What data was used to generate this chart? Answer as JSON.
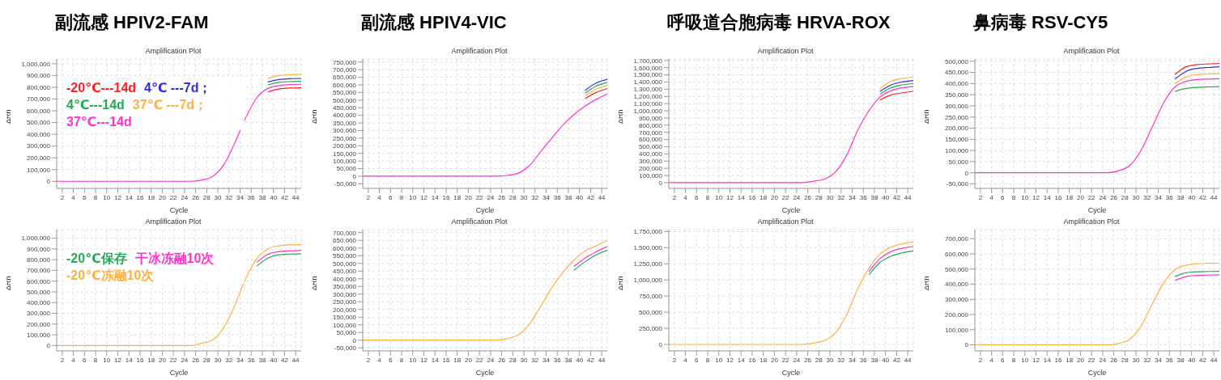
{
  "chart_data": [
    {
      "type": "line",
      "title": "副流感 HPIV2-FAM",
      "subtitle": "Amplification Plot",
      "xlabel": "Cycle",
      "ylabel": "ΔRn",
      "x": [
        1,
        10,
        20,
        25,
        27,
        29,
        31,
        33,
        35,
        37,
        39,
        41,
        43,
        45
      ],
      "xlim": [
        1,
        45
      ],
      "xticks": [
        2,
        4,
        6,
        8,
        10,
        12,
        14,
        16,
        18,
        20,
        22,
        24,
        26,
        28,
        30,
        32,
        34,
        36,
        38,
        40,
        42,
        44
      ],
      "ylim": [
        -60000,
        1040000
      ],
      "yticks": [
        {
          "value": 0,
          "label": "0"
        },
        {
          "value": 100000,
          "label": "100,000"
        },
        {
          "value": 200000,
          "label": "200,000"
        },
        {
          "value": 300000,
          "label": "300,000"
        },
        {
          "value": 400000,
          "label": "400,000"
        },
        {
          "value": 500000,
          "label": "500,000"
        },
        {
          "value": 600000,
          "label": "600,000"
        },
        {
          "value": 700000,
          "label": "700,000"
        },
        {
          "value": 800000,
          "label": "800,000"
        },
        {
          "value": 900000,
          "label": "900,000"
        },
        {
          "value": 1000000,
          "label": "1,000,000"
        }
      ],
      "grid": true,
      "legend": "top left",
      "series": [
        {
          "name": "-20℃---14d",
          "color": "#ff2020",
          "values": [
            null,
            null,
            null,
            null,
            null,
            null,
            null,
            null,
            null,
            null,
            760000,
            785000,
            793000,
            795000
          ]
        },
        {
          "name": "4℃ ---7d；",
          "color": "#3030e0",
          "values": [
            null,
            null,
            null,
            null,
            null,
            null,
            null,
            null,
            null,
            null,
            845000,
            866000,
            873000,
            875000
          ]
        },
        {
          "name": "4℃---14d",
          "color": "#22aa55",
          "values": [
            null,
            null,
            null,
            null,
            null,
            null,
            null,
            null,
            null,
            null,
            820000,
            842000,
            848000,
            850000
          ]
        },
        {
          "name": "37℃ ---7d；",
          "color": "#ffb040",
          "values": [
            null,
            null,
            null,
            null,
            null,
            null,
            null,
            null,
            null,
            null,
            875000,
            900000,
            907000,
            910000
          ]
        },
        {
          "name": "37℃---14d",
          "color": "#ff33cc",
          "values": [
            0,
            0,
            0,
            0,
            10000,
            40000,
            135000,
            320000,
            540000,
            710000,
            790000,
            815000,
            823000,
            825000
          ]
        }
      ]
    },
    {
      "type": "line",
      "title": "副流感 HPIV4-VIC",
      "subtitle": "Amplification Plot",
      "xlabel": "Cycle",
      "ylabel": "ΔRn",
      "x": [
        1,
        10,
        20,
        25,
        27,
        29,
        31,
        33,
        35,
        37,
        39,
        41,
        43,
        45
      ],
      "xlim": [
        1,
        45
      ],
      "xticks": [
        2,
        4,
        6,
        8,
        10,
        12,
        14,
        16,
        18,
        20,
        22,
        24,
        26,
        28,
        30,
        32,
        34,
        36,
        38,
        40,
        42,
        44
      ],
      "ylim": [
        -80000,
        770000
      ],
      "yticks": [
        {
          "value": -50000,
          "label": "-50,000"
        },
        {
          "value": 0,
          "label": "0"
        },
        {
          "value": 50000,
          "label": "50,000"
        },
        {
          "value": 100000,
          "label": "100,000"
        },
        {
          "value": 150000,
          "label": "150,000"
        },
        {
          "value": 200000,
          "label": "200,000"
        },
        {
          "value": 250000,
          "label": "250,000"
        },
        {
          "value": 300000,
          "label": "300,000"
        },
        {
          "value": 350000,
          "label": "350,000"
        },
        {
          "value": 400000,
          "label": "400,000"
        },
        {
          "value": 450000,
          "label": "450,000"
        },
        {
          "value": 500000,
          "label": "500,000"
        },
        {
          "value": 550000,
          "label": "550,000"
        },
        {
          "value": 600000,
          "label": "600,000"
        },
        {
          "value": 650000,
          "label": "650,000"
        },
        {
          "value": 700000,
          "label": "700,000"
        },
        {
          "value": 750000,
          "label": "750,000"
        }
      ],
      "grid": true,
      "series": [
        {
          "color": "#ff2020",
          "values": [
            null,
            null,
            null,
            null,
            null,
            null,
            null,
            null,
            null,
            null,
            null,
            510000,
            550000,
            575000
          ]
        },
        {
          "color": "#3030e0",
          "values": [
            null,
            null,
            null,
            null,
            null,
            null,
            null,
            null,
            null,
            null,
            null,
            564000,
            612000,
            637000
          ]
        },
        {
          "color": "#22aa55",
          "values": [
            null,
            null,
            null,
            null,
            null,
            null,
            null,
            null,
            null,
            null,
            null,
            546000,
            592000,
            617000
          ]
        },
        {
          "color": "#ffb040",
          "values": [
            null,
            null,
            null,
            null,
            null,
            null,
            null,
            null,
            null,
            null,
            null,
            528000,
            572000,
            597000
          ]
        },
        {
          "color": "#ff33cc",
          "values": [
            0,
            0,
            0,
            0,
            5000,
            20000,
            70000,
            160000,
            250000,
            335000,
            405000,
            460000,
            505000,
            540000
          ]
        }
      ]
    },
    {
      "type": "line",
      "title": "呼吸道合胞病毒 HRVA-ROX",
      "subtitle": "Amplification Plot",
      "xlabel": "Cycle",
      "ylabel": "ΔRn",
      "x": [
        1,
        10,
        20,
        25,
        27,
        29,
        31,
        33,
        35,
        37,
        39,
        41,
        43,
        45
      ],
      "xlim": [
        1,
        45
      ],
      "xticks": [
        2,
        4,
        6,
        8,
        10,
        12,
        14,
        16,
        18,
        20,
        22,
        24,
        26,
        28,
        30,
        32,
        34,
        36,
        38,
        40,
        42,
        44
      ],
      "ylim": [
        -80000,
        1720000
      ],
      "yticks": [
        {
          "value": 0,
          "label": "0"
        },
        {
          "value": 100000,
          "label": "100,000"
        },
        {
          "value": 200000,
          "label": "200,000"
        },
        {
          "value": 300000,
          "label": "300,000"
        },
        {
          "value": 400000,
          "label": "400,000"
        },
        {
          "value": 500000,
          "label": "500,000"
        },
        {
          "value": 600000,
          "label": "600,000"
        },
        {
          "value": 700000,
          "label": "700,000"
        },
        {
          "value": 800000,
          "label": "800,000"
        },
        {
          "value": 900000,
          "label": "900,000"
        },
        {
          "value": 1000000,
          "label": "1,000,000"
        },
        {
          "value": 1100000,
          "label": "1,100,000"
        },
        {
          "value": 1200000,
          "label": "1,200,000"
        },
        {
          "value": 1300000,
          "label": "1,300,000"
        },
        {
          "value": 1400000,
          "label": "1,400,000"
        },
        {
          "value": 1500000,
          "label": "1,500,000"
        },
        {
          "value": 1600000,
          "label": "1,600,000"
        },
        {
          "value": 1700000,
          "label": "1,700,000"
        }
      ],
      "grid": true,
      "series": [
        {
          "color": "#ff2020",
          "values": [
            null,
            null,
            null,
            null,
            null,
            null,
            null,
            null,
            null,
            null,
            1150000,
            1220000,
            1250000,
            1270000
          ]
        },
        {
          "color": "#3030e0",
          "values": [
            null,
            null,
            null,
            null,
            null,
            null,
            null,
            null,
            null,
            null,
            1270000,
            1360000,
            1400000,
            1420000
          ]
        },
        {
          "color": "#22aa55",
          "values": [
            null,
            null,
            null,
            null,
            null,
            null,
            null,
            null,
            null,
            null,
            1230000,
            1320000,
            1360000,
            1380000
          ]
        },
        {
          "color": "#ffb040",
          "values": [
            null,
            null,
            null,
            null,
            null,
            null,
            null,
            null,
            null,
            null,
            1310000,
            1410000,
            1450000,
            1470000
          ]
        },
        {
          "color": "#ff33cc",
          "values": [
            0,
            0,
            0,
            0,
            20000,
            50000,
            150000,
            380000,
            730000,
            1000000,
            1190000,
            1280000,
            1320000,
            1340000
          ]
        }
      ]
    },
    {
      "type": "line",
      "title": "鼻病毒 RSV-CY5",
      "subtitle": "Amplification Plot",
      "xlabel": "Cycle",
      "ylabel": "ΔRn",
      "x": [
        1,
        10,
        20,
        25,
        27,
        29,
        31,
        33,
        35,
        37,
        39,
        41,
        43,
        45
      ],
      "xlim": [
        1,
        45
      ],
      "xticks": [
        2,
        4,
        6,
        8,
        10,
        12,
        14,
        16,
        18,
        20,
        22,
        24,
        26,
        28,
        30,
        32,
        34,
        36,
        38,
        40,
        42,
        44
      ],
      "ylim": [
        -70000,
        510000
      ],
      "yticks": [
        {
          "value": -50000,
          "label": "-50,000"
        },
        {
          "value": 0,
          "label": "0"
        },
        {
          "value": 50000,
          "label": "50,000"
        },
        {
          "value": 100000,
          "label": "100,000"
        },
        {
          "value": 150000,
          "label": "150,000"
        },
        {
          "value": 200000,
          "label": "200,000"
        },
        {
          "value": 250000,
          "label": "250,000"
        },
        {
          "value": 300000,
          "label": "300,000"
        },
        {
          "value": 350000,
          "label": "350,000"
        },
        {
          "value": 400000,
          "label": "400,000"
        },
        {
          "value": 450000,
          "label": "450,000"
        },
        {
          "value": 500000,
          "label": "500,000"
        }
      ],
      "grid": true,
      "series": [
        {
          "color": "#ff2020",
          "values": [
            null,
            null,
            null,
            null,
            null,
            null,
            null,
            null,
            null,
            440000,
            475000,
            485000,
            488000,
            490000
          ]
        },
        {
          "color": "#3030e0",
          "values": [
            null,
            null,
            null,
            null,
            null,
            null,
            null,
            null,
            null,
            420000,
            455000,
            468000,
            472000,
            475000
          ]
        },
        {
          "color": "#22aa55",
          "values": [
            null,
            null,
            null,
            null,
            null,
            null,
            null,
            null,
            null,
            365000,
            378000,
            383000,
            385000,
            386000
          ]
        },
        {
          "color": "#ffb040",
          "values": [
            null,
            null,
            null,
            null,
            null,
            null,
            null,
            null,
            null,
            400000,
            430000,
            440000,
            443000,
            445000
          ]
        },
        {
          "color": "#ff33cc",
          "values": [
            0,
            0,
            0,
            0,
            10000,
            35000,
            105000,
            210000,
            315000,
            385000,
            410000,
            418000,
            420000,
            422000
          ]
        }
      ]
    },
    {
      "type": "line",
      "title": "Amplification Plot",
      "xlabel": "Cycle",
      "ylabel": "ΔRn",
      "x": [
        1,
        10,
        20,
        25,
        27,
        29,
        31,
        33,
        35,
        37,
        39,
        41,
        43,
        45
      ],
      "xlim": [
        1,
        45
      ],
      "xticks": [
        2,
        4,
        6,
        8,
        10,
        12,
        14,
        16,
        18,
        20,
        22,
        24,
        26,
        28,
        30,
        32,
        34,
        36,
        38,
        40,
        42,
        44
      ],
      "ylim": [
        -50000,
        1080000
      ],
      "yticks": [
        {
          "value": 0,
          "label": "0"
        },
        {
          "value": 100000,
          "label": "100,000"
        },
        {
          "value": 200000,
          "label": "200,000"
        },
        {
          "value": 300000,
          "label": "300,000"
        },
        {
          "value": 400000,
          "label": "400,000"
        },
        {
          "value": 500000,
          "label": "500,000"
        },
        {
          "value": 600000,
          "label": "600,000"
        },
        {
          "value": 700000,
          "label": "700,000"
        },
        {
          "value": 800000,
          "label": "800,000"
        },
        {
          "value": 900000,
          "label": "900,000"
        },
        {
          "value": 1000000,
          "label": "1,000,000"
        }
      ],
      "grid": true,
      "legend": "top left",
      "series": [
        {
          "name": "-20℃保存",
          "color": "#22aa55",
          "values": [
            null,
            null,
            null,
            null,
            null,
            null,
            null,
            null,
            null,
            740000,
            815000,
            845000,
            852000,
            855000
          ]
        },
        {
          "name": "干冰冻融10次",
          "color": "#ff33cc",
          "values": [
            null,
            null,
            null,
            null,
            null,
            null,
            null,
            null,
            null,
            775000,
            850000,
            875000,
            882000,
            885000
          ]
        },
        {
          "name": "-20℃冻融10次",
          "color": "#ffb040",
          "values": [
            0,
            0,
            0,
            0,
            20000,
            50000,
            160000,
            370000,
            620000,
            810000,
            900000,
            930000,
            938000,
            940000
          ]
        }
      ]
    },
    {
      "type": "line",
      "title": "Amplification Plot",
      "xlabel": "Cycle",
      "ylabel": "ΔRn",
      "x": [
        1,
        10,
        20,
        25,
        27,
        29,
        31,
        33,
        35,
        37,
        39,
        41,
        43,
        45
      ],
      "xlim": [
        1,
        45
      ],
      "xticks": [
        2,
        4,
        6,
        8,
        10,
        12,
        14,
        16,
        18,
        20,
        22,
        24,
        26,
        28,
        30,
        32,
        34,
        36,
        38,
        40,
        42,
        44
      ],
      "ylim": [
        -70000,
        720000
      ],
      "yticks": [
        {
          "value": -50000,
          "label": "-50,000"
        },
        {
          "value": 0,
          "label": "0"
        },
        {
          "value": 50000,
          "label": "50,000"
        },
        {
          "value": 100000,
          "label": "100,000"
        },
        {
          "value": 150000,
          "label": "150,000"
        },
        {
          "value": 200000,
          "label": "200,000"
        },
        {
          "value": 250000,
          "label": "250,000"
        },
        {
          "value": 300000,
          "label": "300,000"
        },
        {
          "value": 350000,
          "label": "350,000"
        },
        {
          "value": 400000,
          "label": "400,000"
        },
        {
          "value": 450000,
          "label": "450,000"
        },
        {
          "value": 500000,
          "label": "500,000"
        },
        {
          "value": 550000,
          "label": "550,000"
        },
        {
          "value": 600000,
          "label": "600,000"
        },
        {
          "value": 650000,
          "label": "650,000"
        },
        {
          "value": 700000,
          "label": "700,000"
        }
      ],
      "grid": true,
      "series": [
        {
          "color": "#22aa55",
          "values": [
            null,
            null,
            null,
            null,
            null,
            null,
            null,
            null,
            null,
            null,
            455000,
            510000,
            555000,
            585000
          ]
        },
        {
          "color": "#ff33cc",
          "values": [
            null,
            null,
            null,
            null,
            null,
            null,
            null,
            null,
            null,
            null,
            480000,
            535000,
            575000,
            610000
          ]
        },
        {
          "color": "#ffb040",
          "values": [
            0,
            0,
            0,
            0,
            10000,
            35000,
            105000,
            220000,
            340000,
            440000,
            520000,
            580000,
            615000,
            650000
          ]
        }
      ]
    },
    {
      "type": "line",
      "title": "Amplification Plot",
      "xlabel": "Cycle",
      "ylabel": "ΔRn",
      "x": [
        1,
        10,
        20,
        25,
        27,
        29,
        31,
        33,
        35,
        37,
        39,
        41,
        43,
        45
      ],
      "xlim": [
        1,
        45
      ],
      "xticks": [
        2,
        4,
        6,
        8,
        10,
        12,
        14,
        16,
        18,
        20,
        22,
        24,
        26,
        28,
        30,
        32,
        34,
        36,
        38,
        40,
        42,
        44
      ],
      "ylim": [
        -100000,
        1780000
      ],
      "yticks": [
        {
          "value": 0,
          "label": "0"
        },
        {
          "value": 250000,
          "label": "250,000"
        },
        {
          "value": 500000,
          "label": "500,000"
        },
        {
          "value": 750000,
          "label": "750,000"
        },
        {
          "value": 1000000,
          "label": "1,000,000"
        },
        {
          "value": 1250000,
          "label": "1,250,000"
        },
        {
          "value": 1500000,
          "label": "1,500,000"
        },
        {
          "value": 1750000,
          "label": "1,750,000"
        }
      ],
      "grid": true,
      "series": [
        {
          "color": "#22aa55",
          "values": [
            null,
            null,
            null,
            null,
            null,
            null,
            null,
            null,
            null,
            1080000,
            1270000,
            1370000,
            1420000,
            1450000
          ]
        },
        {
          "color": "#ff33cc",
          "values": [
            null,
            null,
            null,
            null,
            null,
            null,
            null,
            null,
            null,
            1130000,
            1330000,
            1440000,
            1490000,
            1520000
          ]
        },
        {
          "color": "#ffb040",
          "values": [
            0,
            0,
            0,
            0,
            20000,
            60000,
            180000,
            460000,
            860000,
            1180000,
            1400000,
            1510000,
            1560000,
            1590000
          ]
        }
      ]
    },
    {
      "type": "line",
      "title": "Amplification Plot",
      "xlabel": "Cycle",
      "ylabel": "ΔRn",
      "x": [
        1,
        10,
        20,
        25,
        27,
        29,
        31,
        33,
        35,
        37,
        39,
        41,
        43,
        45
      ],
      "xlim": [
        1,
        45
      ],
      "xticks": [
        2,
        4,
        6,
        8,
        10,
        12,
        14,
        16,
        18,
        20,
        22,
        24,
        26,
        28,
        30,
        32,
        34,
        36,
        38,
        40,
        42,
        44
      ],
      "ylim": [
        -40000,
        760000
      ],
      "yticks": [
        {
          "value": 0,
          "label": "0"
        },
        {
          "value": 100000,
          "label": "100,000"
        },
        {
          "value": 200000,
          "label": "200,000"
        },
        {
          "value": 300000,
          "label": "300,000"
        },
        {
          "value": 400000,
          "label": "400,000"
        },
        {
          "value": 500000,
          "label": "500,000"
        },
        {
          "value": 600000,
          "label": "600,000"
        },
        {
          "value": 700000,
          "label": "700,000"
        }
      ],
      "grid": true,
      "series": [
        {
          "color": "#22aa55",
          "values": [
            null,
            null,
            null,
            null,
            null,
            null,
            null,
            null,
            null,
            450000,
            475000,
            482000,
            484000,
            485000
          ]
        },
        {
          "color": "#ff33cc",
          "values": [
            null,
            null,
            null,
            null,
            null,
            null,
            null,
            null,
            null,
            425000,
            450000,
            458000,
            460000,
            462000
          ]
        },
        {
          "color": "#ffb040",
          "values": [
            0,
            0,
            0,
            0,
            10000,
            40000,
            130000,
            275000,
            410000,
            495000,
            525000,
            535000,
            538000,
            540000
          ]
        }
      ]
    }
  ]
}
